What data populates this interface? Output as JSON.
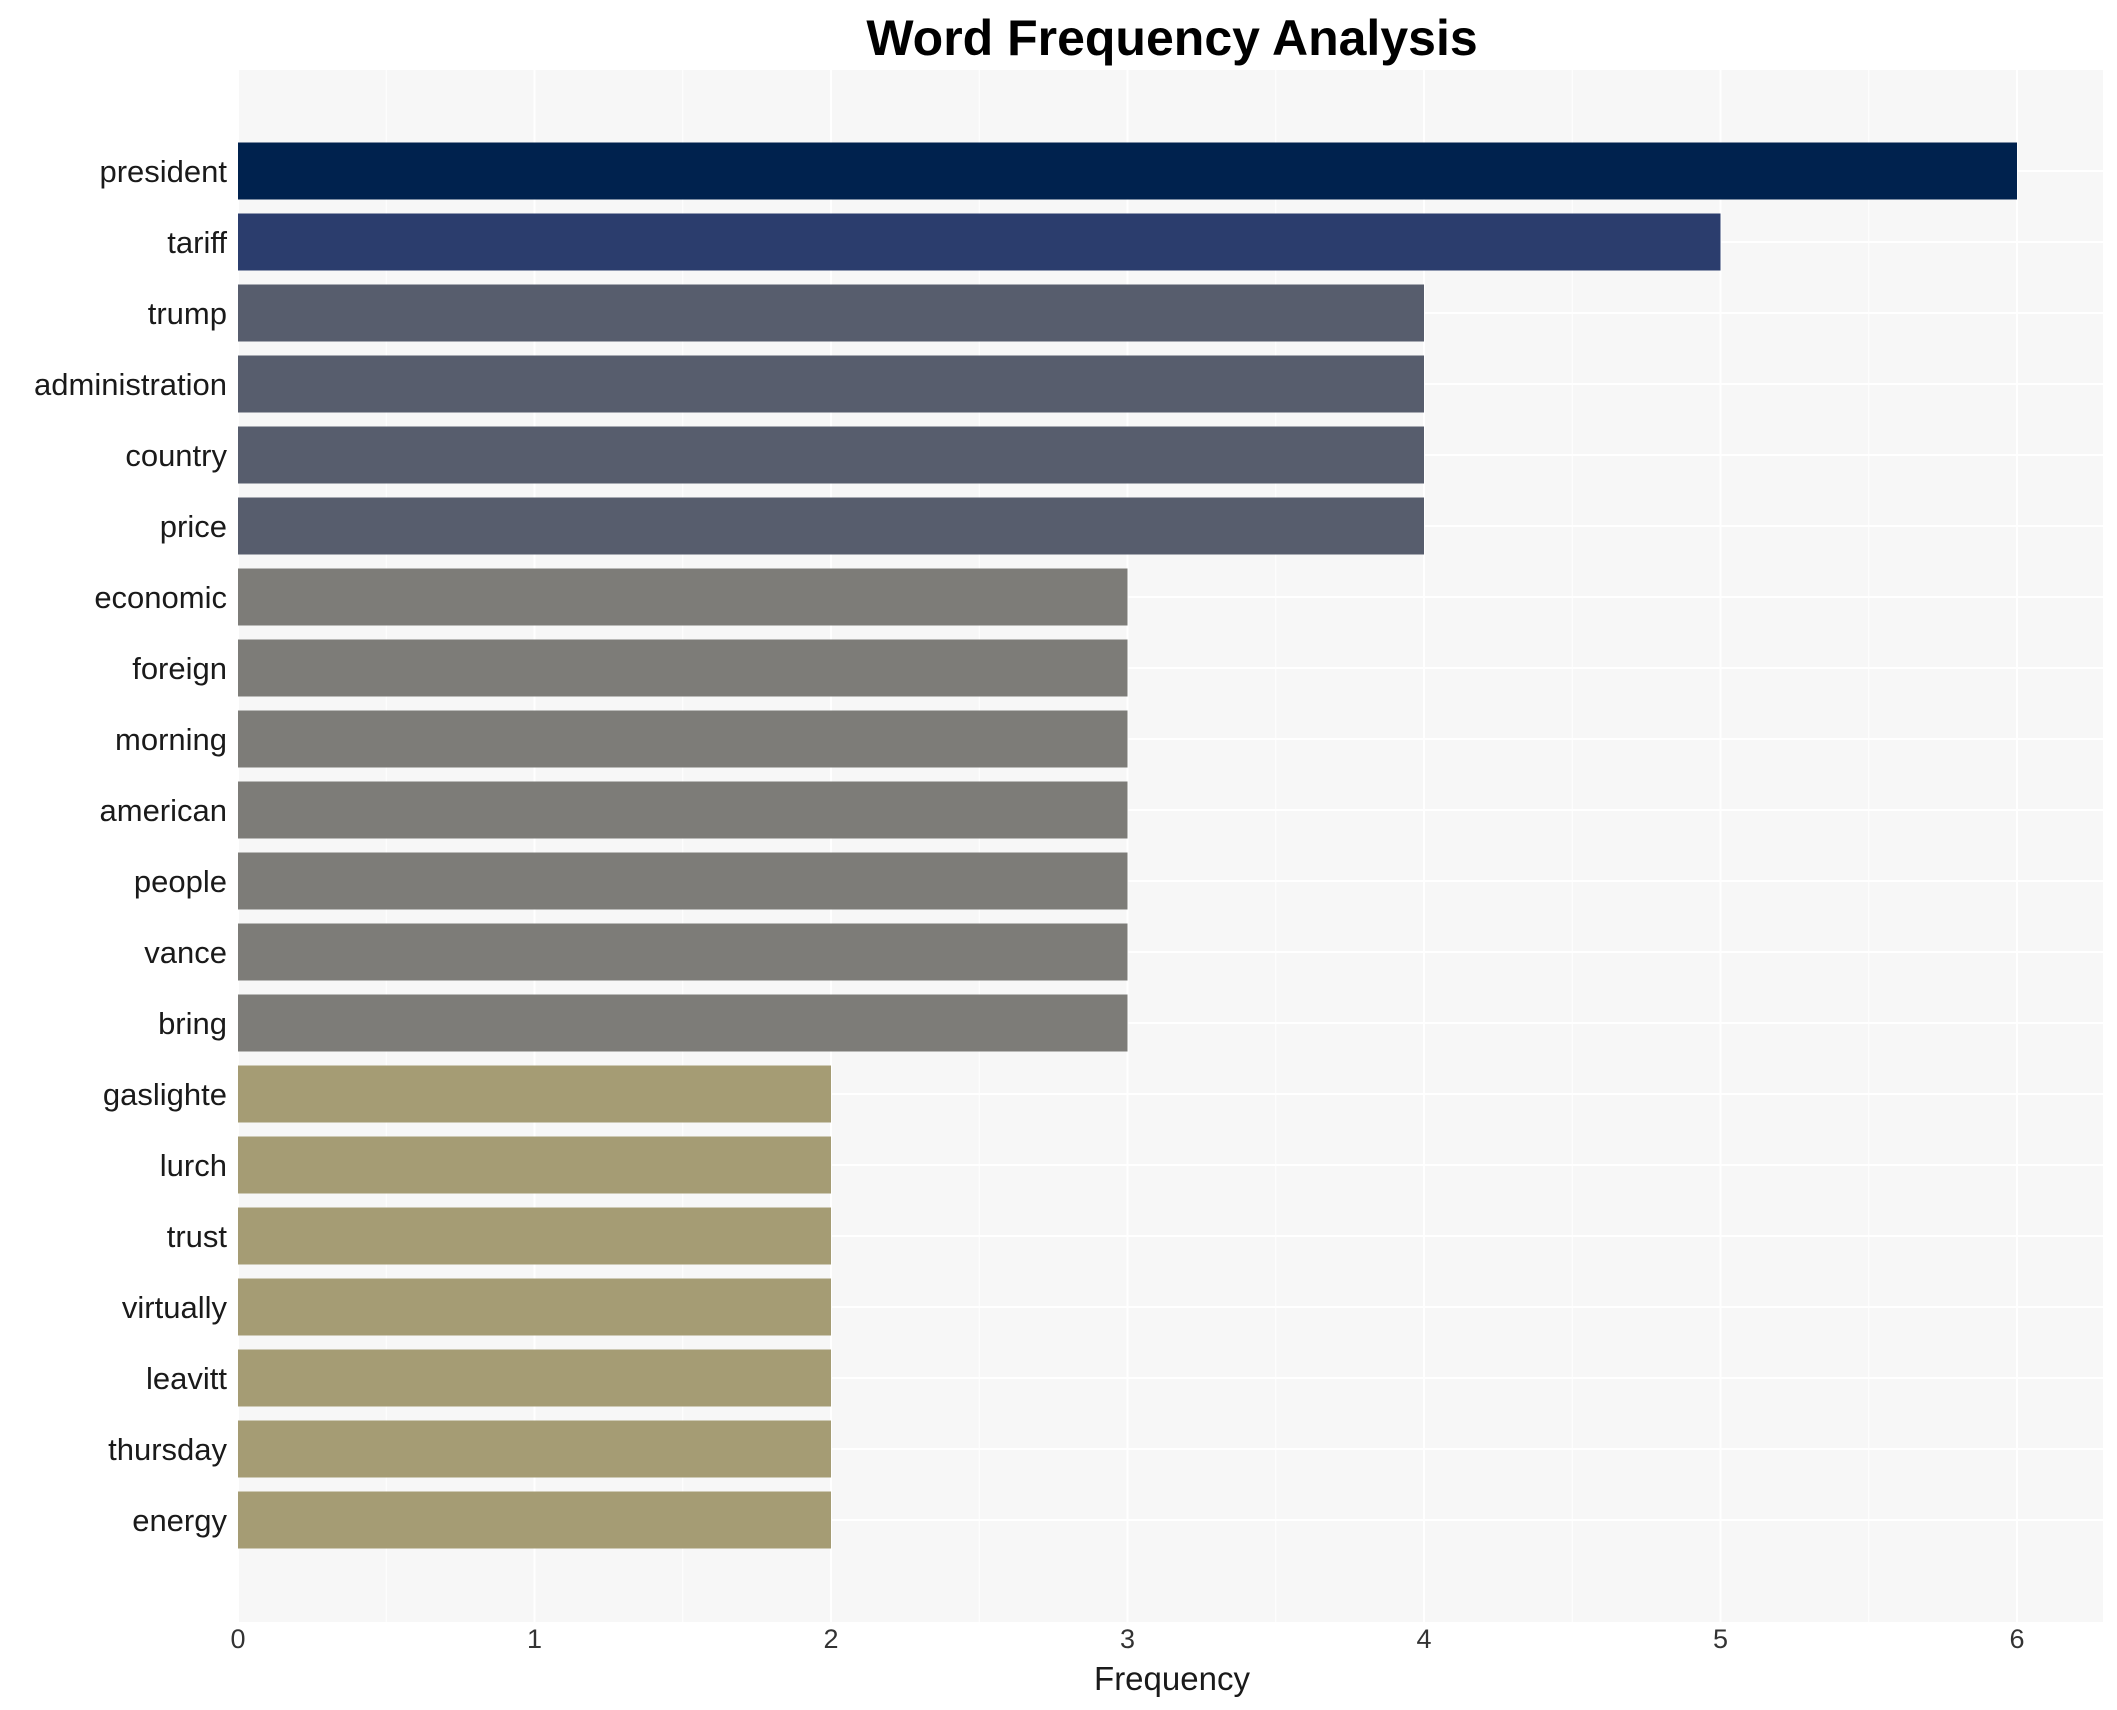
{
  "chart_data": {
    "type": "bar",
    "orientation": "horizontal",
    "title": "Word Frequency Analysis",
    "xlabel": "Frequency",
    "ylabel": "",
    "xlim": [
      0,
      6.3
    ],
    "xticks": [
      0,
      1,
      2,
      3,
      4,
      5,
      6
    ],
    "grid": true,
    "categories": [
      "president",
      "tariff",
      "trump",
      "administration",
      "country",
      "price",
      "economic",
      "foreign",
      "morning",
      "american",
      "people",
      "vance",
      "bring",
      "gaslighte",
      "lurch",
      "trust",
      "virtually",
      "leavitt",
      "thursday",
      "energy"
    ],
    "values": [
      6,
      5,
      4,
      4,
      4,
      4,
      3,
      3,
      3,
      3,
      3,
      3,
      3,
      2,
      2,
      2,
      2,
      2,
      2,
      2
    ],
    "colors": [
      "#00224e",
      "#2b3d6d",
      "#575d6d",
      "#575d6d",
      "#575d6d",
      "#575d6d",
      "#7d7c78",
      "#7d7c78",
      "#7d7c78",
      "#7d7c78",
      "#7d7c78",
      "#7d7c78",
      "#7d7c78",
      "#a59c74",
      "#a59c74",
      "#a59c74",
      "#a59c74",
      "#a59c74",
      "#a59c74",
      "#a59c74"
    ],
    "plot_background": "#f7f7f7",
    "gridline_color": "#ffffff"
  }
}
